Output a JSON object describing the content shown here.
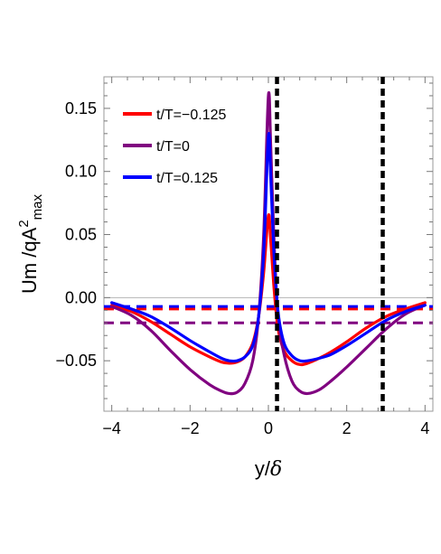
{
  "chart_data": {
    "type": "line",
    "xlabel_text": "y/",
    "xlabel_symbol": "δ",
    "ylabel_text": "Um  /qA",
    "ylabel_sup": "2",
    "ylabel_sub": "max",
    "xlim": [
      -4.2,
      4.2
    ],
    "ylim": [
      -0.09,
      0.175
    ],
    "xticks": [
      -4,
      -2,
      0,
      2,
      4
    ],
    "xtick_labels": [
      "−4",
      "−2",
      "0",
      "2",
      "4"
    ],
    "yticks": [
      -0.05,
      0.0,
      0.05,
      0.1,
      0.15
    ],
    "ytick_labels": [
      "−0.05",
      "0.00",
      "0.05",
      "0.10",
      "0.15"
    ],
    "legend_placement": "top-left",
    "vertical_lines": [
      0.22,
      2.92
    ],
    "series": [
      {
        "name": "t/T=−0.125",
        "color": "#ff0000",
        "points": [
          [
            -4.0,
            -0.006
          ],
          [
            -3.5,
            -0.011
          ],
          [
            -3.0,
            -0.019
          ],
          [
            -2.5,
            -0.029
          ],
          [
            -2.0,
            -0.039
          ],
          [
            -1.5,
            -0.047
          ],
          [
            -1.2,
            -0.051
          ],
          [
            -1.0,
            -0.052
          ],
          [
            -0.8,
            -0.051
          ],
          [
            -0.6,
            -0.047
          ],
          [
            -0.4,
            -0.036
          ],
          [
            -0.25,
            -0.015
          ],
          [
            -0.12,
            0.02
          ],
          [
            0.0,
            0.065
          ],
          [
            0.06,
            0.045
          ],
          [
            0.15,
            0.005
          ],
          [
            0.25,
            -0.025
          ],
          [
            0.4,
            -0.042
          ],
          [
            0.6,
            -0.05
          ],
          [
            0.8,
            -0.053
          ],
          [
            1.0,
            -0.052
          ],
          [
            1.3,
            -0.048
          ],
          [
            1.6,
            -0.043
          ],
          [
            2.0,
            -0.035
          ],
          [
            2.5,
            -0.024
          ],
          [
            3.0,
            -0.015
          ],
          [
            3.5,
            -0.009
          ],
          [
            4.0,
            -0.004
          ]
        ],
        "mean": -0.009
      },
      {
        "name": "t/T=0",
        "color": "#800080",
        "points": [
          [
            -4.0,
            -0.007
          ],
          [
            -3.5,
            -0.014
          ],
          [
            -3.0,
            -0.026
          ],
          [
            -2.5,
            -0.042
          ],
          [
            -2.0,
            -0.057
          ],
          [
            -1.5,
            -0.069
          ],
          [
            -1.2,
            -0.074
          ],
          [
            -1.0,
            -0.076
          ],
          [
            -0.8,
            -0.075
          ],
          [
            -0.6,
            -0.068
          ],
          [
            -0.4,
            -0.05
          ],
          [
            -0.25,
            -0.015
          ],
          [
            -0.12,
            0.05
          ],
          [
            0.0,
            0.16
          ],
          [
            0.06,
            0.12
          ],
          [
            0.15,
            0.04
          ],
          [
            0.25,
            -0.015
          ],
          [
            0.4,
            -0.045
          ],
          [
            0.6,
            -0.066
          ],
          [
            0.8,
            -0.074
          ],
          [
            1.0,
            -0.076
          ],
          [
            1.3,
            -0.073
          ],
          [
            1.6,
            -0.066
          ],
          [
            2.0,
            -0.055
          ],
          [
            2.5,
            -0.04
          ],
          [
            3.0,
            -0.025
          ],
          [
            3.5,
            -0.013
          ],
          [
            4.0,
            -0.006
          ]
        ],
        "mean": -0.02
      },
      {
        "name": "t/T=0.125",
        "color": "#0000ff",
        "points": [
          [
            -4.0,
            -0.004
          ],
          [
            -3.5,
            -0.009
          ],
          [
            -3.0,
            -0.015
          ],
          [
            -2.5,
            -0.024
          ],
          [
            -2.0,
            -0.034
          ],
          [
            -1.5,
            -0.043
          ],
          [
            -1.2,
            -0.048
          ],
          [
            -1.0,
            -0.05
          ],
          [
            -0.8,
            -0.05
          ],
          [
            -0.6,
            -0.047
          ],
          [
            -0.4,
            -0.038
          ],
          [
            -0.25,
            -0.015
          ],
          [
            -0.12,
            0.035
          ],
          [
            0.0,
            0.128
          ],
          [
            0.06,
            0.095
          ],
          [
            0.15,
            0.03
          ],
          [
            0.25,
            -0.012
          ],
          [
            0.4,
            -0.036
          ],
          [
            0.6,
            -0.046
          ],
          [
            0.8,
            -0.05
          ],
          [
            1.0,
            -0.05
          ],
          [
            1.3,
            -0.048
          ],
          [
            1.6,
            -0.045
          ],
          [
            2.0,
            -0.038
          ],
          [
            2.5,
            -0.028
          ],
          [
            3.0,
            -0.018
          ],
          [
            3.5,
            -0.011
          ],
          [
            4.0,
            -0.006
          ]
        ],
        "mean": -0.007
      }
    ]
  }
}
